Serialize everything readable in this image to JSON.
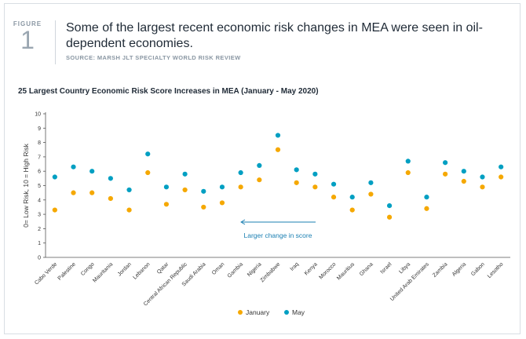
{
  "figure": {
    "label": "FIGURE",
    "number": "1",
    "headline": "Some of the largest recent economic risk changes in MEA were seen in oil-dependent economies.",
    "source": "SOURCE: MARSH JLT SPECIALTY WORLD RISK REVIEW"
  },
  "colors": {
    "january": "#f5a800",
    "may": "#009fc2",
    "annotation": "#1a7fb2"
  },
  "chart_data": {
    "type": "scatter",
    "title": "25 Largest Country Economic Risk Score Increases in MEA (January - May 2020)",
    "xlabel": "",
    "ylabel": "0= Low Risk, 10 = High Risk",
    "ylim": [
      0,
      10
    ],
    "yticks": [
      0,
      1,
      2,
      3,
      4,
      5,
      6,
      7,
      8,
      9,
      10
    ],
    "categories": [
      "Cabo Verde",
      "Palestine",
      "Congo",
      "Mauritania",
      "Jordan",
      "Lebanon",
      "Qatar",
      "Central African Republic",
      "Saudi Arabia",
      "Oman",
      "Gambia",
      "Nigeria",
      "Zimbabwe",
      "Iraq",
      "Kenya",
      "Morocco",
      "Mauritius",
      "Ghana",
      "Israel",
      "Libya",
      "United Arab Emirates",
      "Zambia",
      "Algeria",
      "Gabon",
      "Lesotho"
    ],
    "series": [
      {
        "name": "January",
        "values": [
          3.3,
          4.5,
          4.5,
          4.1,
          3.3,
          5.9,
          3.7,
          4.7,
          3.5,
          3.8,
          4.9,
          5.4,
          7.5,
          5.2,
          4.9,
          4.2,
          3.3,
          4.4,
          2.8,
          5.9,
          3.4,
          5.8,
          5.3,
          4.9,
          5.6
        ]
      },
      {
        "name": "May",
        "values": [
          5.6,
          6.3,
          6.0,
          5.5,
          4.7,
          7.2,
          4.9,
          5.8,
          4.6,
          4.9,
          5.9,
          6.4,
          8.5,
          6.1,
          5.8,
          5.1,
          4.2,
          5.2,
          3.6,
          6.7,
          4.2,
          6.6,
          6.0,
          5.6,
          6.3
        ]
      }
    ],
    "annotation": "Larger change in score",
    "legend": [
      "January",
      "May"
    ],
    "legend_position": "bottom-center",
    "grid": false
  }
}
